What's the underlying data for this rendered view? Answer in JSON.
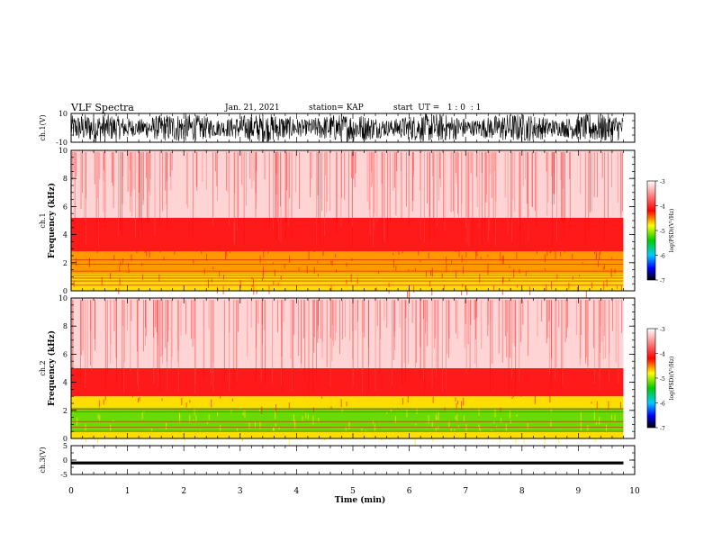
{
  "header": {
    "title": "VLF Spectra",
    "date": "Jan. 21, 2021",
    "station": "station= KAP",
    "start": "start  UT =   1 : 0  : 1"
  },
  "colorbar": {
    "label": "log(PSD)(V²/Hz)",
    "ticks": [
      "-3",
      "-4",
      "-5",
      "-6",
      "-7"
    ],
    "colors": [
      "#ffffff",
      "#ff0000",
      "#ffff00",
      "#00cc00",
      "#00ccff",
      "#0000ff",
      "#000000"
    ]
  },
  "chart_data": [
    {
      "type": "line",
      "name": "ch1-waveform",
      "ylabel": "ch.1(V)",
      "yticks": [
        "10",
        "-10"
      ],
      "ylim": [
        -10,
        10
      ],
      "xlim": [
        0,
        10
      ],
      "data_extent_min": 9.8,
      "description_values": "dense noise oscillating between about -10 and 10 V over 0-9.8 min"
    },
    {
      "type": "heatmap",
      "name": "ch1-spectrogram",
      "ylabel": "ch.1 Frequency (kHz)",
      "ylim": [
        0,
        10
      ],
      "yticks": [
        "0",
        "2",
        "4",
        "6",
        "8",
        "10"
      ],
      "xlim": [
        0,
        10
      ],
      "data_extent_min": 9.8,
      "bands_khz": [
        {
          "from": 0,
          "to": 1.2,
          "level": "yellow"
        },
        {
          "from": 1.2,
          "to": 2.8,
          "level": "yellow-red"
        },
        {
          "from": 2.8,
          "to": 5.2,
          "level": "red"
        },
        {
          "from": 5.2,
          "to": 10,
          "level": "white-red"
        }
      ],
      "lines_khz": [
        0.4,
        0.7,
        0.9,
        1.1,
        1.4,
        1.9,
        2.2
      ]
    },
    {
      "type": "heatmap",
      "name": "ch2-spectrogram",
      "ylabel": "ch.2 Frequency (kHz)",
      "ylim": [
        0,
        10
      ],
      "yticks": [
        "0",
        "2",
        "4",
        "6",
        "8",
        "10"
      ],
      "xlim": [
        0,
        10
      ],
      "data_extent_min": 9.8,
      "bands_khz": [
        {
          "from": 0,
          "to": 0.5,
          "level": "yellow"
        },
        {
          "from": 0.5,
          "to": 2.2,
          "level": "green"
        },
        {
          "from": 2.2,
          "to": 3.0,
          "level": "yellow"
        },
        {
          "from": 3.0,
          "to": 5.0,
          "level": "red"
        },
        {
          "from": 5.0,
          "to": 10,
          "level": "white-red"
        }
      ],
      "lines_khz": [
        0.5,
        0.8,
        1.2,
        1.9,
        2.1
      ]
    },
    {
      "type": "line",
      "name": "ch3-waveform",
      "ylabel": "ch.3(V)",
      "yticks": [
        "5",
        "0",
        "-5"
      ],
      "ylim": [
        -5,
        5
      ],
      "xlim": [
        0,
        10
      ],
      "data_extent_min": 9.8,
      "level_v": [
        -1.5,
        -0.5
      ]
    }
  ],
  "xaxis": {
    "label": "Time (min)",
    "ticks": [
      "0",
      "1",
      "2",
      "3",
      "4",
      "5",
      "6",
      "7",
      "8",
      "9",
      "10"
    ]
  }
}
